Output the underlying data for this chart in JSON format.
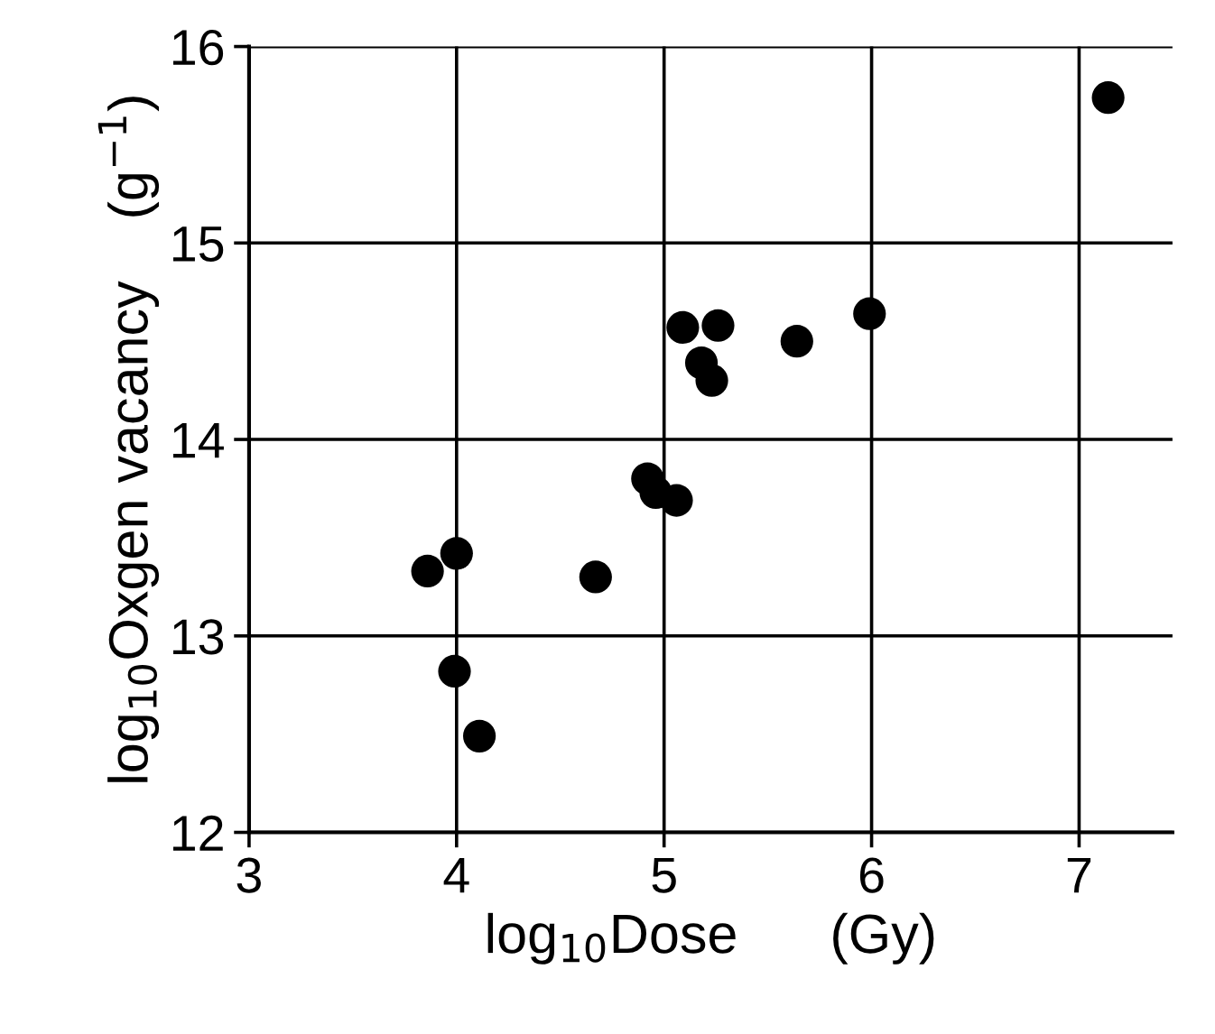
{
  "chart_data": {
    "type": "scatter",
    "xlabel": "log$_{10}$Dose      (Gy)",
    "ylabel": "log$_{10}$Oxgen vacancy    (g$^{−1}$)",
    "x": [
      3.86,
      4.0,
      4.67,
      3.99,
      4.11,
      4.92,
      4.96,
      5.06,
      5.09,
      5.26,
      5.18,
      5.23,
      5.64,
      5.99,
      7.14
    ],
    "values": [
      13.33,
      13.42,
      13.3,
      12.82,
      12.49,
      13.8,
      13.73,
      13.69,
      14.57,
      14.58,
      14.39,
      14.3,
      14.5,
      14.64,
      15.74
    ],
    "color": "#000000",
    "marker": "circle",
    "xlim": [
      3,
      7.45
    ],
    "xticks": [
      3,
      4,
      5,
      6,
      7
    ],
    "ylim": [
      12,
      16
    ],
    "yticks": [
      12,
      13,
      14,
      15,
      16
    ],
    "grid": true,
    "legend": false
  }
}
